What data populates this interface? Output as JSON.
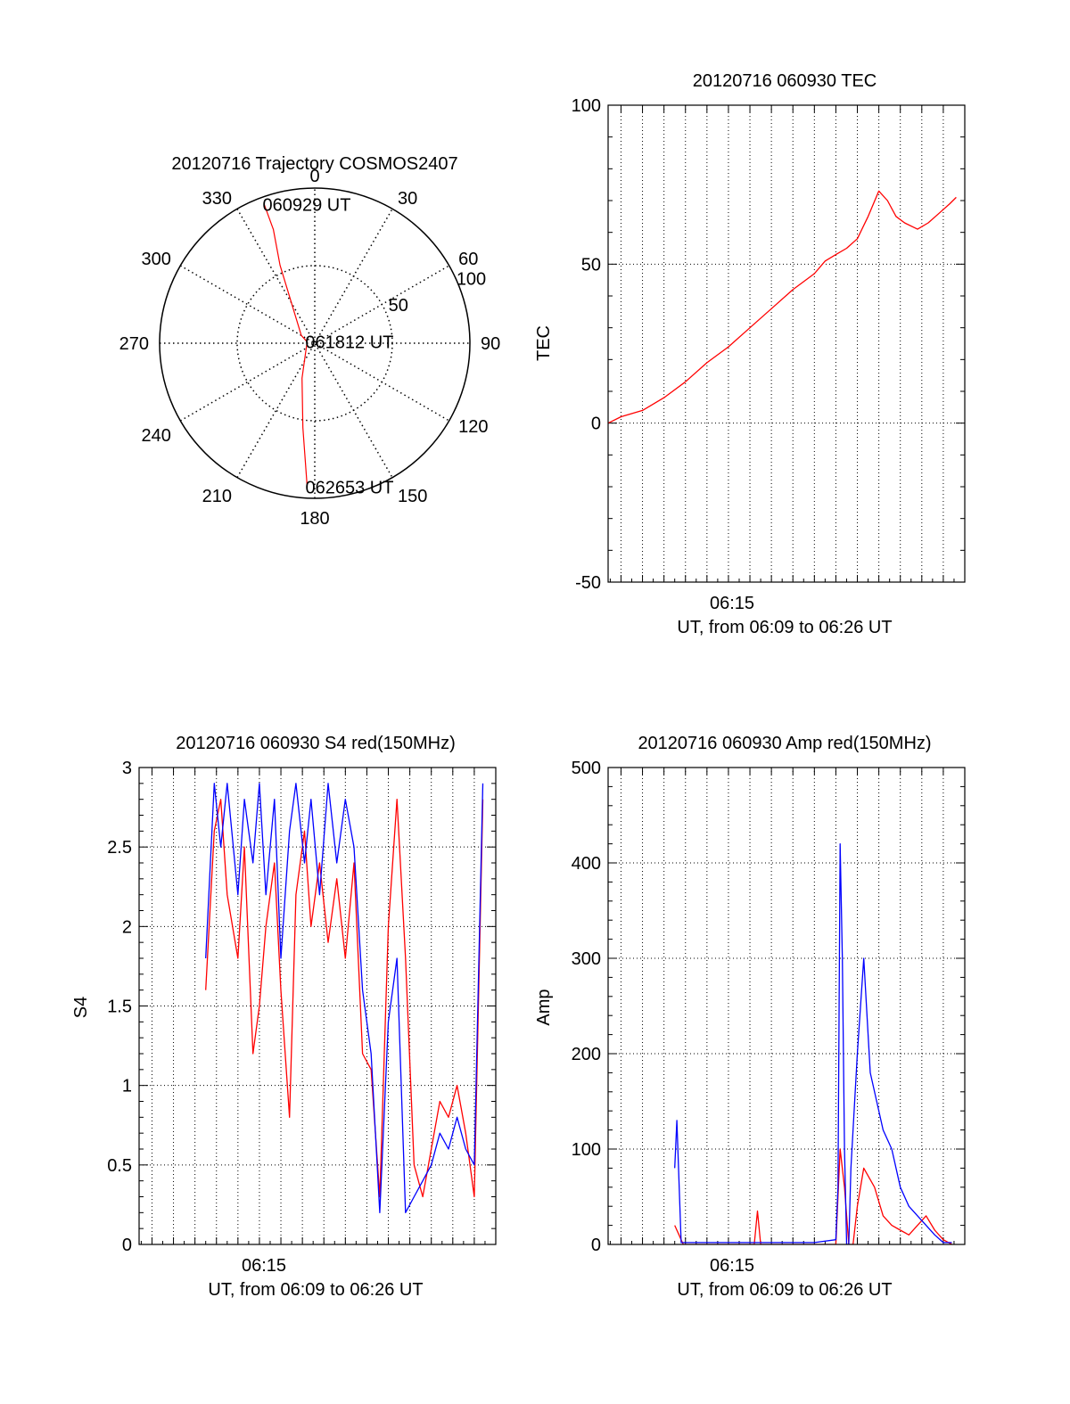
{
  "colors": {
    "red": "#ff0000",
    "blue": "#0000ff",
    "axis": "#000000",
    "grid": "#000000"
  },
  "chart_data": [
    {
      "type": "polar",
      "title": "20120716 Trajectory COSMOS2407",
      "angle_labels": [
        "0",
        "30",
        "60",
        "90",
        "120",
        "150",
        "180",
        "210",
        "240",
        "270",
        "300",
        "330"
      ],
      "radial_labels": [
        "50",
        "100"
      ],
      "rlim": [
        0,
        100
      ],
      "series": [
        {
          "color": "red",
          "points": [
            {
              "azimuth": 340,
              "r": 95,
              "label": "060929 UT"
            },
            {
              "azimuth": 340,
              "r": 78
            },
            {
              "azimuth": 336,
              "r": 55
            },
            {
              "azimuth": 300,
              "r": 10
            },
            {
              "azimuth": 280,
              "r": 5,
              "label": "061812 UT"
            },
            {
              "azimuth": 200,
              "r": 24
            },
            {
              "azimuth": 188,
              "r": 55
            },
            {
              "azimuth": 183,
              "r": 93,
              "label": "062653 UT"
            }
          ]
        }
      ]
    },
    {
      "type": "line",
      "title": "20120716 060930 TEC",
      "xlabel": "UT, from 06:09 to 06:26 UT",
      "ylabel": "TEC",
      "xlim": [
        "06:09",
        "06:26"
      ],
      "ylim": [
        -50,
        100
      ],
      "yticks": [
        "-50",
        "0",
        "50",
        "100"
      ],
      "xtick_labels": [
        "06:15"
      ],
      "grid": true,
      "series": [
        {
          "color": "red",
          "x": [
            6.4,
            7,
            8,
            9,
            10,
            11,
            12,
            13,
            14,
            15,
            16,
            16.5,
            17,
            17.5,
            18,
            18.5,
            19,
            19.4,
            19.8,
            20.2,
            20.8,
            21.3,
            21.8,
            22.3,
            22.6
          ],
          "y": [
            0,
            2,
            4,
            8,
            13,
            19,
            24,
            30,
            36,
            42,
            47,
            51,
            53,
            55,
            58,
            65,
            73,
            70,
            65,
            63,
            61,
            63,
            66,
            69,
            71
          ]
        }
      ]
    },
    {
      "type": "line",
      "title": "20120716 060930 S4 red(150MHz)",
      "xlabel": "UT, from 06:09 to 06:26 UT",
      "ylabel": "S4",
      "xlim": [
        "06:09",
        "06:26"
      ],
      "ylim": [
        0,
        3
      ],
      "yticks": [
        "0",
        "0.5",
        "1",
        "1.5",
        "2",
        "2.5",
        "3"
      ],
      "xtick_labels": [
        "06:15"
      ],
      "grid": true,
      "series": [
        {
          "color": "red",
          "x": [
            9.5,
            9.9,
            10.2,
            10.5,
            11,
            11.3,
            11.7,
            12,
            12.3,
            12.7,
            13,
            13.4,
            13.7,
            14.1,
            14.4,
            14.8,
            15.2,
            15.6,
            16,
            16.4,
            16.8,
            17.2,
            17.6,
            18,
            18.4,
            18.8,
            19.2,
            19.6,
            20,
            20.4,
            20.8,
            21.2,
            21.6,
            22,
            22.4
          ],
          "y": [
            1.6,
            2.6,
            2.8,
            2.2,
            1.8,
            2.5,
            1.2,
            1.5,
            2.0,
            2.4,
            1.6,
            0.8,
            2.2,
            2.6,
            2.0,
            2.4,
            1.9,
            2.3,
            1.8,
            2.4,
            1.2,
            1.1,
            0.3,
            2.0,
            2.8,
            1.8,
            0.5,
            0.3,
            0.6,
            0.9,
            0.8,
            1.0,
            0.7,
            0.3,
            2.8
          ]
        },
        {
          "color": "blue",
          "x": [
            9.5,
            9.9,
            10.2,
            10.5,
            11,
            11.3,
            11.7,
            12,
            12.3,
            12.7,
            13,
            13.4,
            13.7,
            14.1,
            14.4,
            14.8,
            15.2,
            15.6,
            16,
            16.4,
            16.8,
            17.2,
            17.6,
            18,
            18.4,
            18.8,
            19.2,
            19.6,
            20,
            20.4,
            20.8,
            21.2,
            21.6,
            22,
            22.4
          ],
          "y": [
            1.8,
            2.9,
            2.5,
            2.9,
            2.2,
            2.8,
            2.4,
            2.9,
            2.2,
            2.8,
            1.8,
            2.6,
            2.9,
            2.4,
            2.8,
            2.2,
            2.9,
            2.4,
            2.8,
            2.5,
            1.6,
            1.2,
            0.2,
            1.4,
            1.8,
            0.2,
            0.3,
            0.4,
            0.5,
            0.7,
            0.6,
            0.8,
            0.6,
            0.5,
            2.9
          ]
        }
      ]
    },
    {
      "type": "line",
      "title": "20120716 060930 Amp red(150MHz)",
      "xlabel": "UT, from 06:09 to 06:26 UT",
      "ylabel": "Amp",
      "xlim": [
        "06:09",
        "06:26"
      ],
      "ylim": [
        0,
        500
      ],
      "yticks": [
        "0",
        "100",
        "200",
        "300",
        "400",
        "500"
      ],
      "xtick_labels": [
        "06:15"
      ],
      "grid": true,
      "series": [
        {
          "color": "red",
          "x": [
            9.5,
            9.9,
            10.2,
            10.5,
            12,
            12.5,
            13.2,
            13.35,
            13.5,
            14,
            16,
            17,
            17.2,
            17.4,
            17.6,
            17.8,
            18,
            18.3,
            18.8,
            19.2,
            19.6,
            20,
            20.4,
            20.8,
            21.2,
            21.6,
            22,
            22.4
          ],
          "y": [
            20,
            0,
            0,
            0,
            0,
            0,
            0,
            35,
            0,
            0,
            0,
            0,
            100,
            60,
            0,
            0,
            40,
            80,
            60,
            30,
            20,
            15,
            10,
            20,
            30,
            15,
            5,
            0
          ]
        },
        {
          "color": "blue",
          "x": [
            9.5,
            9.6,
            9.8,
            10.2,
            10.5,
            12,
            14,
            16,
            17,
            17.1,
            17.2,
            17.3,
            17.4,
            17.5,
            17.6,
            17.7,
            17.8,
            18,
            18.3,
            18.6,
            18.9,
            19.2,
            19.6,
            20,
            20.4,
            20.8,
            21.2,
            21.6,
            22,
            22.4
          ],
          "y": [
            80,
            130,
            2,
            2,
            2,
            2,
            2,
            2,
            5,
            60,
            420,
            300,
            100,
            0,
            0,
            80,
            120,
            200,
            300,
            180,
            150,
            120,
            100,
            60,
            40,
            30,
            20,
            10,
            2,
            2
          ]
        }
      ]
    }
  ]
}
